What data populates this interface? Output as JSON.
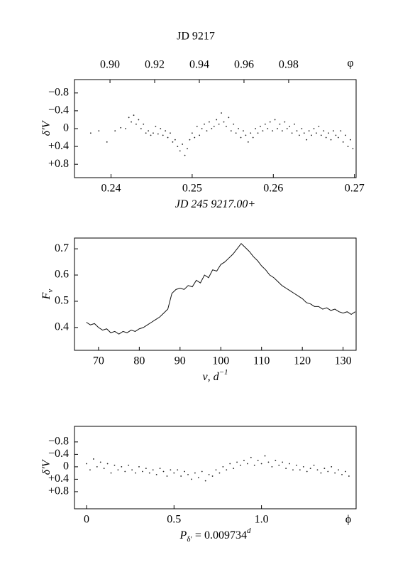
{
  "chart_data": [
    {
      "type": "scatter",
      "title": "JD 9217",
      "xlabel": "JD 245 9217.00+",
      "ylabel": "δ′V",
      "color": "#222",
      "yinvert": true,
      "xlim": [
        0.2355,
        0.2702
      ],
      "xticks": [
        0.24,
        0.25,
        0.26,
        0.27
      ],
      "x2lim": [
        0.8841,
        1.0102
      ],
      "x2ticks": [
        0.9,
        0.92,
        0.94,
        0.96,
        0.98
      ],
      "x2tick_labels": [
        "0.90",
        "0.92",
        "0.94",
        "0.96",
        "0.98"
      ],
      "x2label": "φ",
      "ylim": [
        -1.1,
        1.1
      ],
      "yticks": [
        {
          "value": -0.8,
          "label": "−0.8"
        },
        {
          "value": -0.4,
          "label": "−0.4"
        },
        0,
        {
          "value": 0.4,
          "label": "+0.4"
        },
        {
          "value": 0.8,
          "label": "+0.8"
        }
      ],
      "x": [
        0.2375,
        0.2385,
        0.2395,
        0.2405,
        0.2412,
        0.2418,
        0.2422,
        0.2425,
        0.2428,
        0.2431,
        0.2434,
        0.2437,
        0.244,
        0.2443,
        0.2446,
        0.2449,
        0.2452,
        0.2455,
        0.2458,
        0.2461,
        0.2464,
        0.2467,
        0.247,
        0.2473,
        0.2476,
        0.2479,
        0.2482,
        0.2485,
        0.2488,
        0.2491,
        0.2494,
        0.2497,
        0.25,
        0.2503,
        0.2506,
        0.2509,
        0.2512,
        0.2515,
        0.2518,
        0.2521,
        0.2524,
        0.2527,
        0.253,
        0.2533,
        0.2536,
        0.2539,
        0.2542,
        0.2545,
        0.2548,
        0.2551,
        0.2554,
        0.2557,
        0.256,
        0.2563,
        0.2566,
        0.2569,
        0.2572,
        0.2575,
        0.2578,
        0.2581,
        0.2584,
        0.2587,
        0.259,
        0.2593,
        0.2596,
        0.2599,
        0.2602,
        0.2605,
        0.2608,
        0.2611,
        0.2614,
        0.2617,
        0.262,
        0.2623,
        0.2626,
        0.2629,
        0.2632,
        0.2635,
        0.2638,
        0.2641,
        0.2644,
        0.2647,
        0.265,
        0.2653,
        0.2656,
        0.2659,
        0.2662,
        0.2665,
        0.2668,
        0.2671,
        0.2674,
        0.2677,
        0.268,
        0.2683,
        0.2686,
        0.2689,
        0.2692,
        0.2695,
        0.2698
      ],
      "values": [
        0.1,
        0.05,
        0.3,
        0.05,
        -0.02,
        0.0,
        -0.25,
        -0.15,
        -0.3,
        -0.1,
        -0.2,
        0.0,
        -0.1,
        0.1,
        0.05,
        0.15,
        0.1,
        -0.05,
        0.12,
        0.0,
        0.15,
        0.05,
        0.2,
        0.1,
        0.3,
        0.25,
        0.4,
        0.5,
        0.35,
        0.6,
        0.45,
        0.25,
        0.1,
        0.2,
        -0.05,
        0.15,
        0.0,
        -0.1,
        0.05,
        -0.15,
        0.0,
        -0.05,
        -0.2,
        -0.1,
        -0.35,
        -0.15,
        -0.05,
        -0.25,
        0.05,
        -0.1,
        0.1,
        0.0,
        0.2,
        0.05,
        0.15,
        0.3,
        0.1,
        0.2,
        0.0,
        0.1,
        -0.05,
        0.05,
        -0.1,
        0.0,
        -0.15,
        0.05,
        -0.2,
        0.0,
        -0.1,
        0.05,
        -0.15,
        0.0,
        -0.05,
        0.1,
        -0.1,
        0.05,
        0.15,
        0.0,
        0.1,
        0.25,
        0.05,
        0.15,
        0.0,
        0.1,
        -0.05,
        0.15,
        0.05,
        0.2,
        0.1,
        0.25,
        0.05,
        0.15,
        0.2,
        0.05,
        0.3,
        0.15,
        0.4,
        0.25,
        0.45
      ]
    },
    {
      "type": "line",
      "xlabel": "ν, d",
      "xlabel_sup": "−1",
      "ylabel": "F",
      "ylabel_sub": "ν",
      "color": "#111",
      "xlim": [
        64.1,
        133.2
      ],
      "xticks": [
        70,
        80,
        90,
        100,
        110,
        120,
        130
      ],
      "ylim": [
        0.313,
        0.741
      ],
      "yticks": [
        0.4,
        0.5,
        0.6,
        0.7
      ],
      "x": [
        67,
        68,
        69,
        70,
        71,
        72,
        73,
        74,
        75,
        76,
        77,
        78,
        79,
        80,
        81,
        82,
        83,
        84,
        85,
        86,
        87,
        88,
        89,
        90,
        91,
        92,
        93,
        94,
        95,
        96,
        97,
        98,
        99,
        100,
        101,
        102,
        103,
        104,
        105,
        106,
        107,
        108,
        109,
        110,
        111,
        112,
        113,
        114,
        115,
        116,
        117,
        118,
        119,
        120,
        121,
        122,
        123,
        124,
        125,
        126,
        127,
        128,
        129,
        130,
        131,
        132,
        133
      ],
      "values": [
        0.42,
        0.41,
        0.415,
        0.4,
        0.39,
        0.395,
        0.38,
        0.385,
        0.375,
        0.385,
        0.38,
        0.39,
        0.385,
        0.395,
        0.4,
        0.41,
        0.42,
        0.43,
        0.44,
        0.455,
        0.47,
        0.53,
        0.545,
        0.55,
        0.545,
        0.56,
        0.555,
        0.58,
        0.57,
        0.6,
        0.59,
        0.62,
        0.615,
        0.64,
        0.65,
        0.665,
        0.68,
        0.7,
        0.72,
        0.705,
        0.69,
        0.67,
        0.655,
        0.635,
        0.62,
        0.6,
        0.59,
        0.575,
        0.56,
        0.55,
        0.54,
        0.53,
        0.52,
        0.51,
        0.495,
        0.49,
        0.48,
        0.48,
        0.47,
        0.475,
        0.465,
        0.47,
        0.46,
        0.455,
        0.46,
        0.45,
        0.46
      ]
    },
    {
      "type": "scatter",
      "xlabel": " = 0.009734",
      "xlabel_base": "P",
      "xlabel_sub": "δ′",
      "xlabel_sup": "d",
      "ylabel": "δ′V",
      "phase_symbol": "ϕ",
      "color": "#222",
      "yinvert": true,
      "xlim": [
        -0.069,
        1.541
      ],
      "xticks": [
        0,
        0.5,
        {
          "value": 1.0,
          "label": "1.0"
        }
      ],
      "ylim": [
        -1.3,
        1.35
      ],
      "yticks": [
        {
          "value": -0.8,
          "label": "−0.8"
        },
        {
          "value": -0.4,
          "label": "−0.4"
        },
        0,
        {
          "value": 0.4,
          "label": "+0.4"
        },
        {
          "value": 0.8,
          "label": "+0.8"
        }
      ],
      "x": [
        0,
        0.02,
        0.04,
        0.06,
        0.08,
        0.1,
        0.12,
        0.14,
        0.16,
        0.18,
        0.2,
        0.22,
        0.24,
        0.26,
        0.28,
        0.3,
        0.32,
        0.34,
        0.36,
        0.38,
        0.4,
        0.42,
        0.44,
        0.46,
        0.48,
        0.5,
        0.52,
        0.54,
        0.56,
        0.58,
        0.6,
        0.62,
        0.64,
        0.66,
        0.68,
        0.7,
        0.72,
        0.74,
        0.76,
        0.78,
        0.8,
        0.82,
        0.84,
        0.86,
        0.88,
        0.9,
        0.92,
        0.94,
        0.96,
        0.98,
        1.0,
        1.02,
        1.04,
        1.06,
        1.08,
        1.1,
        1.12,
        1.14,
        1.16,
        1.18,
        1.2,
        1.22,
        1.24,
        1.26,
        1.28,
        1.3,
        1.32,
        1.34,
        1.36,
        1.38,
        1.4,
        1.42,
        1.44,
        1.46,
        1.48,
        1.5
      ],
      "values": [
        -0.1,
        0.1,
        -0.25,
        0.0,
        -0.15,
        0.05,
        -0.1,
        0.2,
        -0.05,
        0.1,
        0.0,
        0.15,
        -0.05,
        0.1,
        0.2,
        0.0,
        0.15,
        0.05,
        0.2,
        0.1,
        0.25,
        0.05,
        0.15,
        0.3,
        0.1,
        0.2,
        0.1,
        0.3,
        0.15,
        0.25,
        0.4,
        0.2,
        0.35,
        0.15,
        0.45,
        0.25,
        0.3,
        0.1,
        0.2,
        0.0,
        0.1,
        -0.1,
        0.05,
        -0.15,
        -0.05,
        -0.2,
        -0.1,
        -0.3,
        -0.05,
        -0.2,
        -0.1,
        -0.35,
        -0.15,
        0.0,
        -0.2,
        -0.05,
        -0.15,
        0.05,
        -0.1,
        0.1,
        -0.05,
        0.1,
        0.0,
        0.15,
        0.05,
        -0.05,
        0.1,
        0.2,
        0.05,
        0.15,
        0.0,
        0.2,
        0.1,
        0.25,
        0.15,
        0.3
      ]
    }
  ]
}
